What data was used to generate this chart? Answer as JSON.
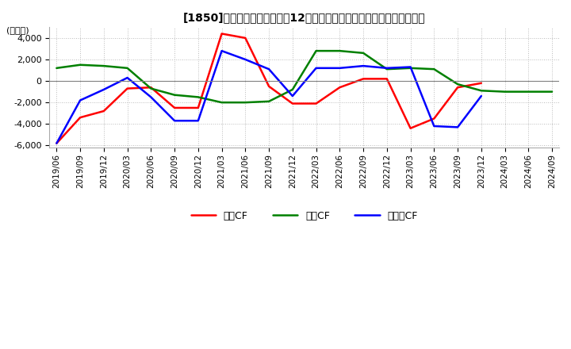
{
  "title": "[1850]　キャッシュフローの12か月移動合計の対前年同期増減額の推移",
  "ylabel": "(百万円)",
  "ylim": [
    -6200,
    5000
  ],
  "yticks": [
    -6000,
    -4000,
    -2000,
    0,
    2000,
    4000
  ],
  "legend_labels": [
    "営業CF",
    "投資CF",
    "フリーCF"
  ],
  "legend_colors": [
    "#ff0000",
    "#008000",
    "#0000ff"
  ],
  "background_color": "#ffffff",
  "grid_color": "#bbbbbb",
  "dates": [
    "2019/06",
    "2019/09",
    "2019/12",
    "2020/03",
    "2020/06",
    "2020/09",
    "2020/12",
    "2021/03",
    "2021/06",
    "2021/09",
    "2021/12",
    "2022/03",
    "2022/06",
    "2022/09",
    "2022/12",
    "2023/03",
    "2023/06",
    "2023/09",
    "2023/12",
    "2024/03",
    "2024/06",
    "2024/09"
  ],
  "operating_cf": [
    -5800,
    -3400,
    -2800,
    -700,
    -600,
    -2500,
    -2500,
    4400,
    4000,
    -500,
    -2100,
    -2100,
    -600,
    200,
    200,
    -4400,
    -3500,
    -600,
    -200,
    null,
    null,
    null
  ],
  "investing_cf": [
    1200,
    1500,
    1400,
    1200,
    -700,
    -1300,
    -1500,
    -2000,
    -2000,
    -1900,
    -800,
    2800,
    2800,
    2600,
    1100,
    1200,
    1100,
    -300,
    -900,
    -1000,
    -1000,
    -1000
  ],
  "free_cf": [
    -5800,
    -1800,
    -800,
    300,
    -1500,
    -3700,
    -3700,
    2800,
    2000,
    1100,
    -1400,
    1200,
    1200,
    1400,
    1200,
    1300,
    -4200,
    -4300,
    -1400,
    null,
    null,
    null
  ]
}
